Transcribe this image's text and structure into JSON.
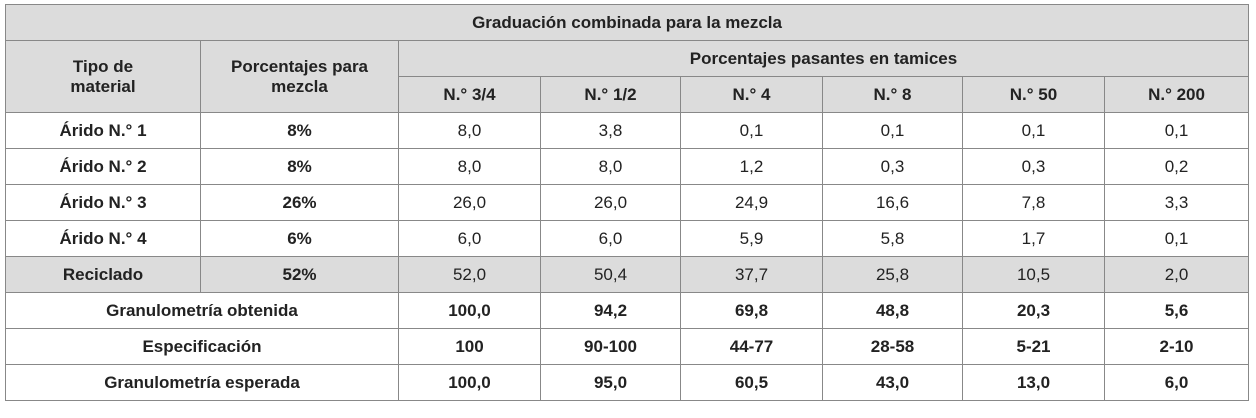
{
  "title": "Graduación combinada para la mezcla",
  "header": {
    "tipo": "Tipo de material",
    "porcentajes": "Porcentajes para mezcla",
    "pasantes": "Porcentajes pasantes en tamices",
    "sieves": [
      "N.° 3/4",
      "N.° 1/2",
      "N.° 4",
      "N.° 8",
      "N.° 50",
      "N.° 200"
    ]
  },
  "rows": [
    {
      "material": "Árido N.° 1",
      "percent": "8%",
      "values": [
        "8,0",
        "3,8",
        "0,1",
        "0,1",
        "0,1",
        "0,1"
      ]
    },
    {
      "material": "Árido N.° 2",
      "percent": "8%",
      "values": [
        "8,0",
        "8,0",
        "1,2",
        "0,3",
        "0,3",
        "0,2"
      ]
    },
    {
      "material": "Árido N.° 3",
      "percent": "26%",
      "values": [
        "26,0",
        "26,0",
        "24,9",
        "16,6",
        "7,8",
        "3,3"
      ]
    },
    {
      "material": "Árido N.° 4",
      "percent": "6%",
      "values": [
        "6,0",
        "6,0",
        "5,9",
        "5,8",
        "1,7",
        "0,1"
      ]
    },
    {
      "material": "Reciclado",
      "percent": "52%",
      "values": [
        "52,0",
        "50,4",
        "37,7",
        "25,8",
        "10,5",
        "2,0"
      ]
    }
  ],
  "summary": [
    {
      "label": "Granulometría obtenida",
      "values": [
        "100,0",
        "94,2",
        "69,8",
        "48,8",
        "20,3",
        "5,6"
      ]
    },
    {
      "label": "Especificación",
      "values": [
        "100",
        "90-100",
        "44-77",
        "28-58",
        "5-21",
        "2-10"
      ]
    },
    {
      "label": "Granulometría esperada",
      "values": [
        "100,0",
        "95,0",
        "60,5",
        "43,0",
        "13,0",
        "6,0"
      ]
    }
  ]
}
